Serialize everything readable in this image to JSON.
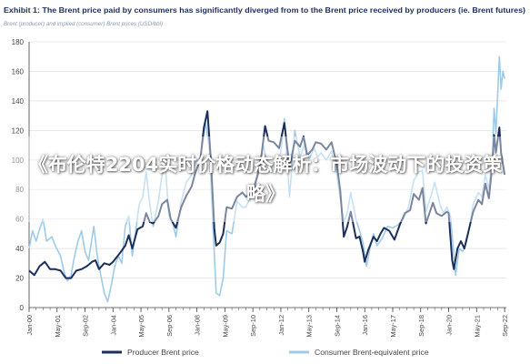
{
  "overlay": {
    "headline": "《布伦特2204实时价格动态解析：市场波动下的投资策略》"
  },
  "colors": {
    "producer": "#1b2f5c",
    "consumer": "#9fcbe8",
    "title": "#1b2f5c",
    "subtitle": "#8a9bb0",
    "axis": "#444444",
    "grid": "#d9d9d9"
  },
  "chart_data": {
    "type": "line",
    "title": "Exhibit 1: The Brent price paid by consumers has significantly diverged from to the Brent price received by producers (ie. Brent futures)",
    "subtitle": "Brent (producer) and implied (consumer) Brent prices (USD/bbl)",
    "xlabel": "",
    "ylabel": "",
    "ylim": [
      0,
      180
    ],
    "yticks": [
      0,
      20,
      40,
      60,
      80,
      100,
      120,
      140,
      160,
      180
    ],
    "xlim": [
      "2000-01",
      "2022-10"
    ],
    "xticks": [
      "Jan-00",
      "May-01",
      "Sep-02",
      "Jan-04",
      "May-05",
      "Sep-06",
      "Jan-08",
      "May-09",
      "Sep-10",
      "Jan-12",
      "May-13",
      "Sep-14",
      "Jan-16",
      "May-17",
      "Sep-18",
      "Jan-20",
      "May-21",
      "Sep-22"
    ],
    "grid": true,
    "legend": "bottom",
    "series": [
      {
        "name": "Producer Brent price",
        "color": "#1b2f5c",
        "points": [
          [
            "2000-01",
            25
          ],
          [
            "2000-04",
            22
          ],
          [
            "2000-07",
            28
          ],
          [
            "2000-10",
            31
          ],
          [
            "2001-01",
            26
          ],
          [
            "2001-04",
            26
          ],
          [
            "2001-07",
            25
          ],
          [
            "2001-10",
            20
          ],
          [
            "2002-01",
            20
          ],
          [
            "2002-04",
            25
          ],
          [
            "2002-07",
            26
          ],
          [
            "2002-10",
            28
          ],
          [
            "2003-01",
            31
          ],
          [
            "2003-03",
            32
          ],
          [
            "2003-05",
            26
          ],
          [
            "2003-08",
            30
          ],
          [
            "2003-11",
            29
          ],
          [
            "2004-01",
            31
          ],
          [
            "2004-05",
            37
          ],
          [
            "2004-08",
            42
          ],
          [
            "2004-10",
            49
          ],
          [
            "2004-12",
            40
          ],
          [
            "2005-03",
            53
          ],
          [
            "2005-06",
            55
          ],
          [
            "2005-08",
            64
          ],
          [
            "2005-10",
            58
          ],
          [
            "2005-12",
            57
          ],
          [
            "2006-03",
            62
          ],
          [
            "2006-05",
            70
          ],
          [
            "2006-08",
            73
          ],
          [
            "2006-10",
            60
          ],
          [
            "2007-01",
            54
          ],
          [
            "2007-04",
            68
          ],
          [
            "2007-07",
            76
          ],
          [
            "2007-10",
            82
          ],
          [
            "2007-12",
            91
          ],
          [
            "2008-03",
            101
          ],
          [
            "2008-05",
            122
          ],
          [
            "2008-07",
            133
          ],
          [
            "2008-09",
            100
          ],
          [
            "2008-11",
            53
          ],
          [
            "2008-12",
            42
          ],
          [
            "2009-02",
            44
          ],
          [
            "2009-04",
            50
          ],
          [
            "2009-06",
            68
          ],
          [
            "2009-09",
            67
          ],
          [
            "2009-12",
            75
          ],
          [
            "2010-03",
            78
          ],
          [
            "2010-05",
            75
          ],
          [
            "2010-08",
            77
          ],
          [
            "2010-10",
            83
          ],
          [
            "2010-12",
            91
          ],
          [
            "2011-02",
            104
          ],
          [
            "2011-04",
            123
          ],
          [
            "2011-06",
            113
          ],
          [
            "2011-09",
            112
          ],
          [
            "2011-12",
            108
          ],
          [
            "2012-03",
            125
          ],
          [
            "2012-06",
            95
          ],
          [
            "2012-09",
            113
          ],
          [
            "2012-12",
            109
          ],
          [
            "2013-02",
            116
          ],
          [
            "2013-04",
            103
          ],
          [
            "2013-07",
            107
          ],
          [
            "2013-09",
            112
          ],
          [
            "2013-12",
            111
          ],
          [
            "2014-03",
            107
          ],
          [
            "2014-06",
            112
          ],
          [
            "2014-09",
            97
          ],
          [
            "2014-11",
            79
          ],
          [
            "2015-01",
            48
          ],
          [
            "2015-03",
            55
          ],
          [
            "2015-05",
            65
          ],
          [
            "2015-08",
            47
          ],
          [
            "2015-10",
            48
          ],
          [
            "2015-12",
            38
          ],
          [
            "2016-01",
            31
          ],
          [
            "2016-03",
            39
          ],
          [
            "2016-06",
            48
          ],
          [
            "2016-08",
            45
          ],
          [
            "2016-10",
            50
          ],
          [
            "2016-12",
            54
          ],
          [
            "2017-03",
            52
          ],
          [
            "2017-06",
            46
          ],
          [
            "2017-09",
            56
          ],
          [
            "2017-12",
            64
          ],
          [
            "2018-03",
            66
          ],
          [
            "2018-05",
            77
          ],
          [
            "2018-08",
            73
          ],
          [
            "2018-10",
            81
          ],
          [
            "2018-12",
            57
          ],
          [
            "2019-02",
            64
          ],
          [
            "2019-04",
            71
          ],
          [
            "2019-06",
            64
          ],
          [
            "2019-09",
            62
          ],
          [
            "2019-12",
            65
          ],
          [
            "2020-01",
            64
          ],
          [
            "2020-03",
            32
          ],
          [
            "2020-04",
            26
          ],
          [
            "2020-06",
            40
          ],
          [
            "2020-08",
            45
          ],
          [
            "2020-10",
            40
          ],
          [
            "2020-12",
            50
          ],
          [
            "2021-03",
            65
          ],
          [
            "2021-06",
            73
          ],
          [
            "2021-08",
            70
          ],
          [
            "2021-10",
            84
          ],
          [
            "2021-12",
            74
          ],
          [
            "2022-02",
            97
          ],
          [
            "2022-03",
            117
          ],
          [
            "2022-04",
            105
          ],
          [
            "2022-06",
            122
          ],
          [
            "2022-07",
            105
          ],
          [
            "2022-09",
            90
          ]
        ]
      },
      {
        "name": "Consumer Brent-equivalent price",
        "color": "#9fcbe8",
        "points": [
          [
            "2000-01",
            40
          ],
          [
            "2000-03",
            52
          ],
          [
            "2000-05",
            45
          ],
          [
            "2000-07",
            53
          ],
          [
            "2000-09",
            60
          ],
          [
            "2000-11",
            45
          ],
          [
            "2001-02",
            48
          ],
          [
            "2001-04",
            42
          ],
          [
            "2001-07",
            35
          ],
          [
            "2001-09",
            24
          ],
          [
            "2001-11",
            18
          ],
          [
            "2002-01",
            22
          ],
          [
            "2002-03",
            35
          ],
          [
            "2002-05",
            45
          ],
          [
            "2002-07",
            52
          ],
          [
            "2002-09",
            38
          ],
          [
            "2002-11",
            32
          ],
          [
            "2003-02",
            55
          ],
          [
            "2003-04",
            35
          ],
          [
            "2003-06",
            22
          ],
          [
            "2003-08",
            10
          ],
          [
            "2003-10",
            4
          ],
          [
            "2003-12",
            15
          ],
          [
            "2004-02",
            28
          ],
          [
            "2004-04",
            35
          ],
          [
            "2004-06",
            30
          ],
          [
            "2004-08",
            55
          ],
          [
            "2004-10",
            62
          ],
          [
            "2004-12",
            35
          ],
          [
            "2005-02",
            52
          ],
          [
            "2005-04",
            70
          ],
          [
            "2005-06",
            75
          ],
          [
            "2005-08",
            92
          ],
          [
            "2005-10",
            70
          ],
          [
            "2005-12",
            55
          ],
          [
            "2006-03",
            72
          ],
          [
            "2006-05",
            90
          ],
          [
            "2006-07",
            95
          ],
          [
            "2006-09",
            62
          ],
          [
            "2006-11",
            58
          ],
          [
            "2007-01",
            48
          ],
          [
            "2007-04",
            72
          ],
          [
            "2007-07",
            85
          ],
          [
            "2007-10",
            90
          ],
          [
            "2007-12",
            98
          ],
          [
            "2008-03",
            102
          ],
          [
            "2008-06",
            125
          ],
          [
            "2008-08",
            110
          ],
          [
            "2008-10",
            60
          ],
          [
            "2008-12",
            10
          ],
          [
            "2009-02",
            8
          ],
          [
            "2009-04",
            20
          ],
          [
            "2009-06",
            52
          ],
          [
            "2009-09",
            50
          ],
          [
            "2009-12",
            72
          ],
          [
            "2010-03",
            68
          ],
          [
            "2010-05",
            68
          ],
          [
            "2010-08",
            76
          ],
          [
            "2010-10",
            80
          ],
          [
            "2010-12",
            90
          ],
          [
            "2011-03",
            110
          ],
          [
            "2011-05",
            98
          ],
          [
            "2011-08",
            95
          ],
          [
            "2011-10",
            100
          ],
          [
            "2011-12",
            95
          ],
          [
            "2012-03",
            128
          ],
          [
            "2012-06",
            75
          ],
          [
            "2012-09",
            120
          ],
          [
            "2012-12",
            102
          ],
          [
            "2013-03",
            112
          ],
          [
            "2013-05",
            100
          ],
          [
            "2013-08",
            108
          ],
          [
            "2013-10",
            102
          ],
          [
            "2013-12",
            105
          ],
          [
            "2014-03",
            100
          ],
          [
            "2014-06",
            106
          ],
          [
            "2014-09",
            90
          ],
          [
            "2014-11",
            74
          ],
          [
            "2015-01",
            58
          ],
          [
            "2015-03",
            64
          ],
          [
            "2015-05",
            78
          ],
          [
            "2015-08",
            60
          ],
          [
            "2015-10",
            52
          ],
          [
            "2015-12",
            44
          ],
          [
            "2016-02",
            28
          ],
          [
            "2016-04",
            40
          ],
          [
            "2016-06",
            50
          ],
          [
            "2016-08",
            42
          ],
          [
            "2016-11",
            47
          ],
          [
            "2017-02",
            55
          ],
          [
            "2017-05",
            54
          ],
          [
            "2017-08",
            56
          ],
          [
            "2017-11",
            60
          ],
          [
            "2018-02",
            68
          ],
          [
            "2018-05",
            86
          ],
          [
            "2018-08",
            92
          ],
          [
            "2018-10",
            93
          ],
          [
            "2018-12",
            65
          ],
          [
            "2019-03",
            76
          ],
          [
            "2019-05",
            85
          ],
          [
            "2019-08",
            70
          ],
          [
            "2019-10",
            64
          ],
          [
            "2019-12",
            68
          ],
          [
            "2020-02",
            62
          ],
          [
            "2020-04",
            35
          ],
          [
            "2020-05",
            22
          ],
          [
            "2020-07",
            40
          ],
          [
            "2020-09",
            38
          ],
          [
            "2020-11",
            44
          ],
          [
            "2021-01",
            55
          ],
          [
            "2021-03",
            70
          ],
          [
            "2021-06",
            78
          ],
          [
            "2021-08",
            75
          ],
          [
            "2021-10",
            90
          ],
          [
            "2021-12",
            80
          ],
          [
            "2022-02",
            103
          ],
          [
            "2022-03",
            135
          ],
          [
            "2022-04",
            118
          ],
          [
            "2022-06",
            170
          ],
          [
            "2022-07",
            148
          ],
          [
            "2022-08",
            160
          ],
          [
            "2022-09",
            155
          ]
        ]
      }
    ]
  }
}
